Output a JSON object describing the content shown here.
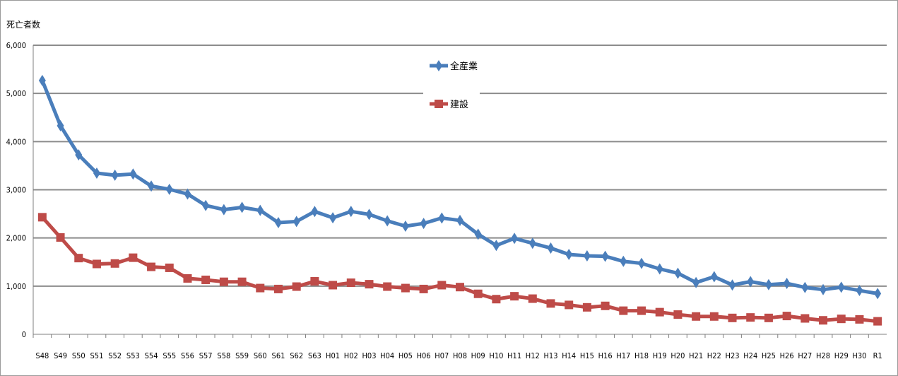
{
  "chart_data": {
    "type": "line",
    "ylabel": "死亡者数",
    "ylim": [
      0,
      6000
    ],
    "yticks": [
      "0",
      "1,000",
      "2,000",
      "3,000",
      "4,000",
      "5,000",
      "6,000"
    ],
    "grid": true,
    "legend_position": "top-center",
    "categories": [
      "S48",
      "S49",
      "S50",
      "S51",
      "S52",
      "S53",
      "S54",
      "S55",
      "S56",
      "S57",
      "S58",
      "S59",
      "S60",
      "S61",
      "S62",
      "S63",
      "H01",
      "H02",
      "H03",
      "H04",
      "H05",
      "H06",
      "H07",
      "H08",
      "H09",
      "H10",
      "H11",
      "H12",
      "H13",
      "H14",
      "H15",
      "H16",
      "H17",
      "H18",
      "H19",
      "H20",
      "H21",
      "H22",
      "H23",
      "H24",
      "H25",
      "H26",
      "H27",
      "H28",
      "H29",
      "H30",
      "R1"
    ],
    "series": [
      {
        "name": "全産業",
        "color": "#4a7ebb",
        "marker": "diamond",
        "values": [
          5269,
          4330,
          3725,
          3345,
          3302,
          3326,
          3077,
          3009,
          2912,
          2674,
          2588,
          2635,
          2572,
          2318,
          2342,
          2549,
          2419,
          2550,
          2489,
          2354,
          2245,
          2301,
          2414,
          2363,
          2078,
          1844,
          1992,
          1889,
          1790,
          1658,
          1628,
          1620,
          1514,
          1472,
          1357,
          1268,
          1075,
          1195,
          1024,
          1093,
          1030,
          1057,
          972,
          928,
          978,
          909,
          845
        ]
      },
      {
        "name": "建設",
        "color": "#be4b48",
        "marker": "square",
        "values": [
          2430,
          2010,
          1582,
          1460,
          1470,
          1590,
          1400,
          1380,
          1160,
          1130,
          1090,
          1090,
          960,
          940,
          990,
          1100,
          1020,
          1070,
          1040,
          990,
          960,
          940,
          1020,
          980,
          840,
          730,
          790,
          740,
          640,
          610,
          560,
          590,
          490,
          490,
          460,
          410,
          370,
          370,
          340,
          350,
          340,
          380,
          330,
          290,
          320,
          310,
          270
        ]
      }
    ]
  }
}
